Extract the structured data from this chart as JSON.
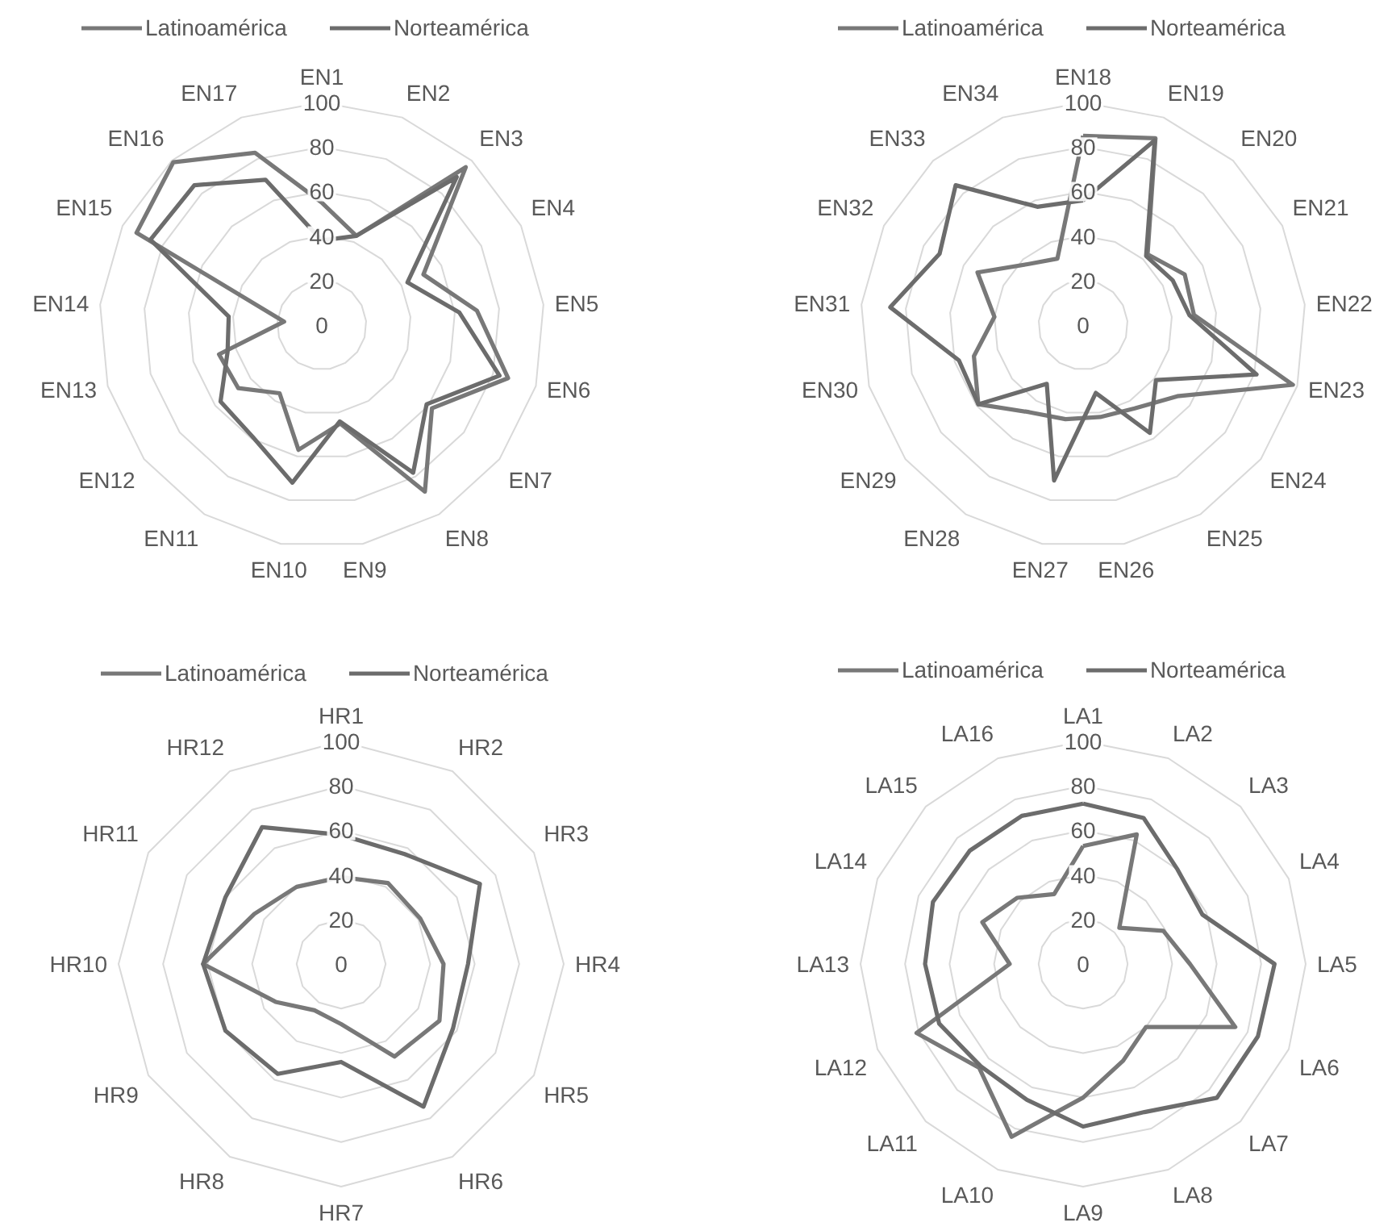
{
  "chart_data": [
    {
      "type": "radar",
      "categories": [
        "EN1",
        "EN2",
        "EN3",
        "EN4",
        "EN5",
        "EN6",
        "EN7",
        "EN8",
        "EN9",
        "EN10",
        "EN11",
        "EN12",
        "EN13",
        "EN14",
        "EN15",
        "EN16",
        "EN17"
      ],
      "series": [
        {
          "name": "Latinoamérica",
          "color": "#787878",
          "values": [
            55,
            43,
            96,
            51,
            70,
            87,
            62,
            88,
            45,
            57,
            36,
            47,
            48,
            17,
            93,
            99,
            83
          ]
        },
        {
          "name": "Norteamérica",
          "color": "#6c6c6c",
          "values": [
            38,
            43,
            90,
            43,
            62,
            83,
            59,
            78,
            44,
            72,
            59,
            57,
            44,
            42,
            86,
            85,
            70
          ]
        }
      ],
      "ylim": [
        0,
        100
      ],
      "yticks": [
        0,
        20,
        40,
        60,
        80,
        100
      ],
      "grid": true,
      "legend": "top"
    },
    {
      "type": "radar",
      "categories": [
        "EN18",
        "EN19",
        "EN20",
        "EN21",
        "EN22",
        "EN23",
        "EN24",
        "EN25",
        "EN26",
        "EN27",
        "EN28",
        "EN29",
        "EN30",
        "EN31",
        "EN32",
        "EN33",
        "EN34"
      ],
      "series": [
        {
          "name": "Latinoamérica",
          "color": "#787878",
          "values": [
            85,
            90,
            43,
            51,
            50,
            98,
            53,
            44,
            42,
            43,
            46,
            59,
            51,
            40,
            53,
            37,
            32
          ]
        },
        {
          "name": "Norteamérica",
          "color": "#6c6c6c",
          "values": [
            56,
            89,
            42,
            45,
            48,
            81,
            41,
            57,
            31,
            71,
            31,
            59,
            58,
            87,
            72,
            85,
            57
          ]
        }
      ],
      "ylim": [
        0,
        100
      ],
      "yticks": [
        0,
        20,
        40,
        60,
        80,
        100
      ],
      "grid": true,
      "legend": "top"
    },
    {
      "type": "radar",
      "categories": [
        "HR1",
        "HR2",
        "HR3",
        "HR4",
        "HR5",
        "HR6",
        "HR7",
        "HR8",
        "HR9",
        "HR10",
        "HR11",
        "HR12"
      ],
      "series": [
        {
          "name": "Latinoamérica",
          "color": "#787878",
          "values": [
            39,
            42,
            41,
            46,
            51,
            48,
            27,
            24,
            34,
            62,
            45,
            40
          ]
        },
        {
          "name": "Norteamérica",
          "color": "#6c6c6c",
          "values": [
            58,
            57,
            72,
            57,
            58,
            74,
            44,
            57,
            60,
            62,
            60,
            71
          ]
        }
      ],
      "ylim": [
        0,
        100
      ],
      "yticks": [
        0,
        20,
        40,
        60,
        80,
        100
      ],
      "grid": true,
      "legend": "top"
    },
    {
      "type": "radar",
      "categories": [
        "LA1",
        "LA2",
        "LA3",
        "LA4",
        "LA5",
        "LA6",
        "LA7",
        "LA8",
        "LA9",
        "LA10",
        "LA11",
        "LA12",
        "LA13",
        "LA14",
        "LA15",
        "LA16"
      ],
      "series": [
        {
          "name": "Latinoamérica",
          "color": "#787878",
          "values": [
            53,
            63,
            23,
            39,
            48,
            74,
            40,
            47,
            60,
            84,
            66,
            81,
            33,
            49,
            42,
            34
          ]
        },
        {
          "name": "Norteamérica",
          "color": "#6c6c6c",
          "values": [
            72,
            71,
            60,
            58,
            86,
            85,
            85,
            72,
            73,
            66,
            65,
            70,
            71,
            73,
            72,
            72
          ]
        }
      ],
      "ylim": [
        0,
        100
      ],
      "yticks": [
        0,
        20,
        40,
        60,
        80,
        100
      ],
      "grid": true,
      "legend": "top"
    }
  ]
}
